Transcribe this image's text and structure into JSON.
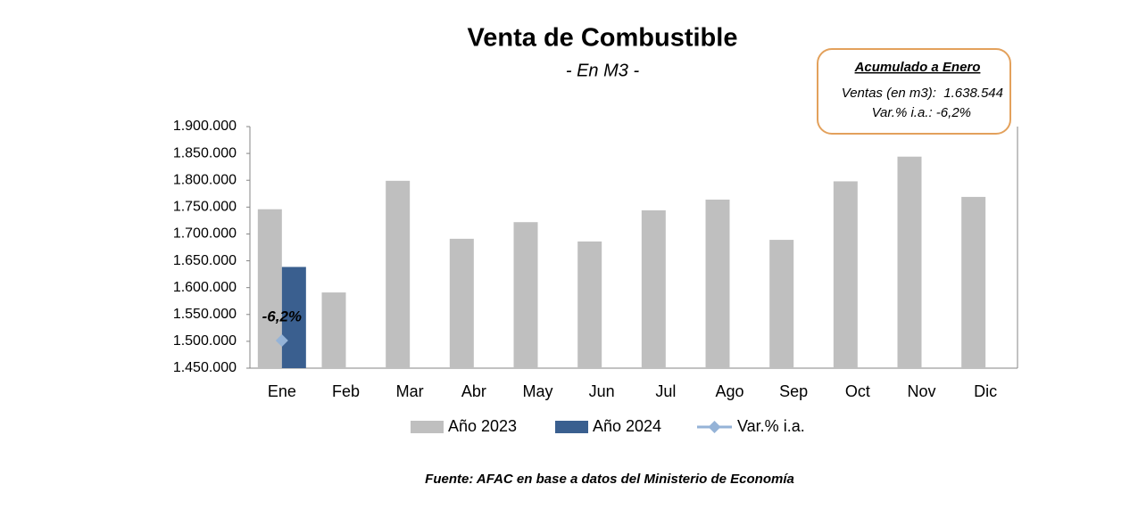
{
  "chart_data": {
    "type": "bar",
    "title": "Venta de Combustible",
    "subtitle": "- En M3 -",
    "categories": [
      "Ene",
      "Feb",
      "Mar",
      "Abr",
      "May",
      "Jun",
      "Jul",
      "Ago",
      "Sep",
      "Oct",
      "Nov",
      "Dic"
    ],
    "series": [
      {
        "name": "Año 2023",
        "color": "#bfbfbf",
        "values": [
          1746000,
          1591000,
          1799000,
          1691000,
          1722000,
          1686000,
          1744000,
          1764000,
          1689000,
          1798000,
          1844000,
          1769000
        ]
      },
      {
        "name": "Año 2024",
        "color": "#3a5f8f",
        "values": [
          1638544,
          null,
          null,
          null,
          null,
          null,
          null,
          null,
          null,
          null,
          null,
          null
        ]
      },
      {
        "name": "Var.% i.a.",
        "color": "#95b3d7",
        "type": "line",
        "axis": "y2",
        "values": [
          -6.2,
          null,
          null,
          null,
          null,
          null,
          null,
          null,
          null,
          null,
          null,
          null
        ],
        "value_labels": [
          "-6,2%",
          null,
          null,
          null,
          null,
          null,
          null,
          null,
          null,
          null,
          null,
          null
        ]
      }
    ],
    "ylim": [
      1450000,
      1900000
    ],
    "yticks": [
      {
        "value": 1450000,
        "label": "1.450.000"
      },
      {
        "value": 1500000,
        "label": "1.500.000"
      },
      {
        "value": 1550000,
        "label": "1.550.000"
      },
      {
        "value": 1600000,
        "label": "1.600.000"
      },
      {
        "value": 1650000,
        "label": "1.650.000"
      },
      {
        "value": 1700000,
        "label": "1.700.000"
      },
      {
        "value": 1750000,
        "label": "1.750.000"
      },
      {
        "value": 1800000,
        "label": "1.800.000"
      },
      {
        "value": 1850000,
        "label": "1.850.000"
      },
      {
        "value": 1900000,
        "label": "1.900.000"
      }
    ],
    "y2lim": [
      -7,
      0
    ],
    "grid": false,
    "legend": "bottom",
    "annotations": [
      "Acumulado a Enero",
      "Ventas (en m3):  1.638.544",
      "Var.% i.a.: -6,2%"
    ],
    "source": "Fuente: AFAC en base a datos del Ministerio de Economía"
  }
}
